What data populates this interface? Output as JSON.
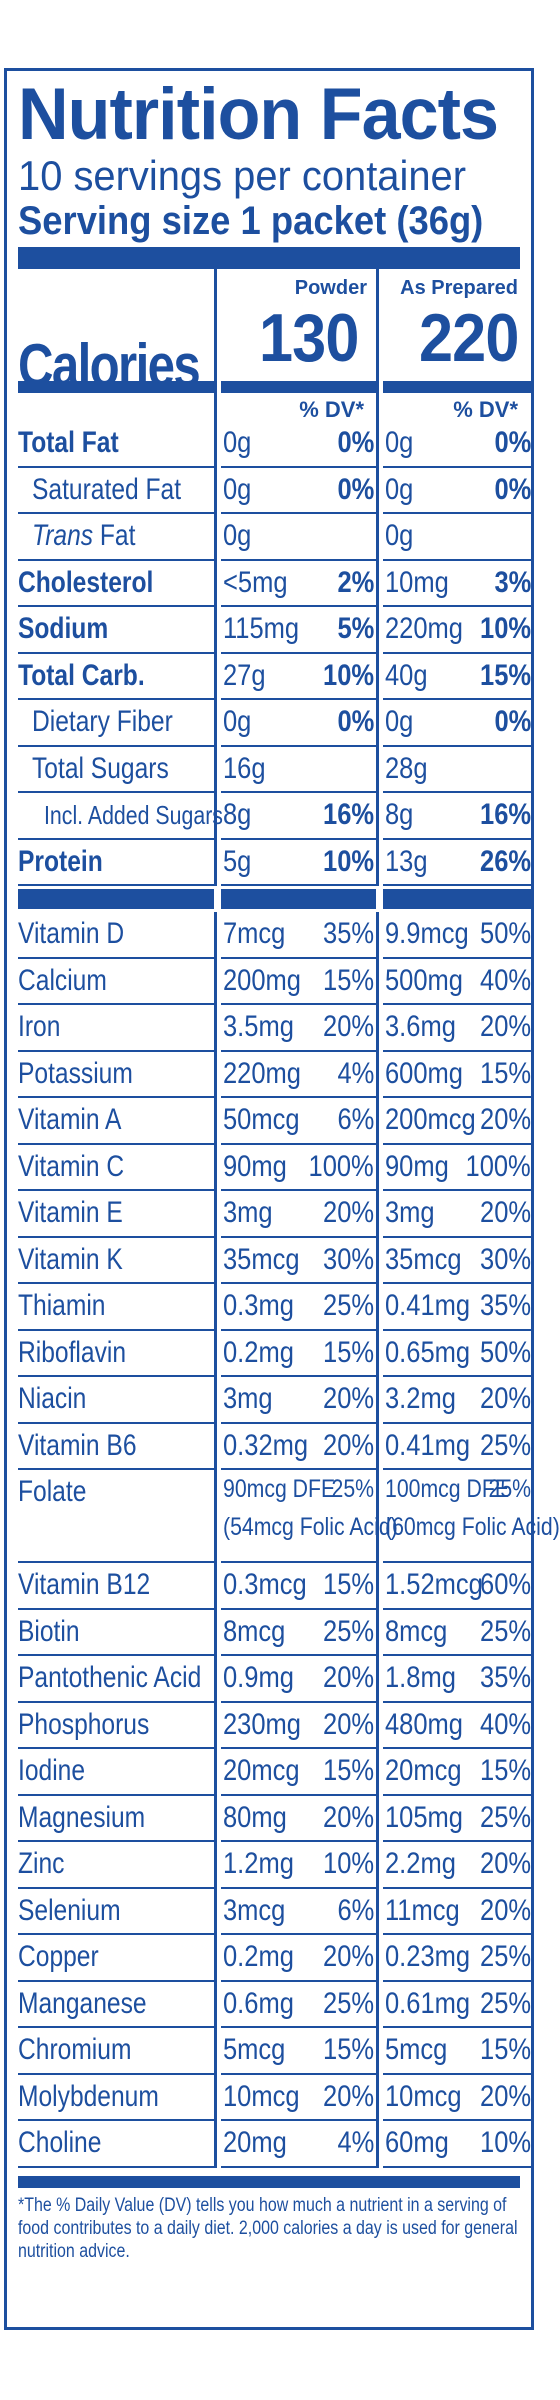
{
  "header": {
    "title": "Nutrition Facts",
    "servings": "10 servings per container",
    "serving_size": "Serving size 1 packet (36g)"
  },
  "calories": {
    "label": "Calories",
    "col1_caption": "Powder",
    "col2_caption": "As Prepared",
    "col1_value": "130",
    "col2_value": "220",
    "dv_header": "% DV*"
  },
  "macros": [
    {
      "name": "Total Fat",
      "bold": true,
      "indent": 0,
      "a1": "0g",
      "p1": "0%",
      "a2": "0g",
      "p2": "0%"
    },
    {
      "name": "Saturated Fat",
      "bold": false,
      "indent": 1,
      "a1": "0g",
      "p1": "0%",
      "a2": "0g",
      "p2": "0%"
    },
    {
      "name": "Trans Fat",
      "bold": false,
      "indent": 1,
      "italic_prefix": true,
      "a1": "0g",
      "p1": "",
      "a2": "0g",
      "p2": ""
    },
    {
      "name": "Cholesterol",
      "bold": true,
      "indent": 0,
      "a1": "<5mg",
      "p1": "2%",
      "a2": "10mg",
      "p2": "3%"
    },
    {
      "name": "Sodium",
      "bold": true,
      "indent": 0,
      "a1": "115mg",
      "p1": "5%",
      "a2": "220mg",
      "p2": "10%"
    },
    {
      "name": "Total Carb.",
      "bold": true,
      "indent": 0,
      "a1": "27g",
      "p1": "10%",
      "a2": "40g",
      "p2": "15%"
    },
    {
      "name": "Dietary Fiber",
      "bold": false,
      "indent": 1,
      "a1": "0g",
      "p1": "0%",
      "a2": "0g",
      "p2": "0%"
    },
    {
      "name": "Total Sugars",
      "bold": false,
      "indent": 1,
      "a1": "16g",
      "p1": "",
      "a2": "28g",
      "p2": ""
    },
    {
      "name": "Incl. Added Sugars",
      "bold": false,
      "indent": 2,
      "a1": "8g",
      "p1": "16%",
      "a2": "8g",
      "p2": "16%"
    },
    {
      "name": "Protein",
      "bold": true,
      "indent": 0,
      "a1": "5g",
      "p1": "10%",
      "a2": "13g",
      "p2": "26%"
    }
  ],
  "micros": [
    {
      "name": "Vitamin D",
      "a1": "7mcg",
      "p1": "35%",
      "a2": "9.9mcg",
      "p2": "50%"
    },
    {
      "name": "Calcium",
      "a1": "200mg",
      "p1": "15%",
      "a2": "500mg",
      "p2": "40%"
    },
    {
      "name": "Iron",
      "a1": "3.5mg",
      "p1": "20%",
      "a2": "3.6mg",
      "p2": "20%"
    },
    {
      "name": "Potassium",
      "a1": "220mg",
      "p1": "4%",
      "a2": "600mg",
      "p2": "15%"
    },
    {
      "name": "Vitamin A",
      "a1": "50mcg",
      "p1": "6%",
      "a2": "200mcg",
      "p2": "20%"
    },
    {
      "name": "Vitamin C",
      "a1": "90mg",
      "p1": "100%",
      "a2": "90mg",
      "p2": "100%"
    },
    {
      "name": "Vitamin E",
      "a1": "3mg",
      "p1": "20%",
      "a2": "3mg",
      "p2": "20%"
    },
    {
      "name": "Vitamin K",
      "a1": "35mcg",
      "p1": "30%",
      "a2": "35mcg",
      "p2": "30%"
    },
    {
      "name": "Thiamin",
      "a1": "0.3mg",
      "p1": "25%",
      "a2": "0.41mg",
      "p2": "35%"
    },
    {
      "name": "Riboflavin",
      "a1": "0.2mg",
      "p1": "15%",
      "a2": "0.65mg",
      "p2": "50%"
    },
    {
      "name": "Niacin",
      "a1": "3mg",
      "p1": "20%",
      "a2": "3.2mg",
      "p2": "20%"
    },
    {
      "name": "Vitamin B6",
      "a1": "0.32mg",
      "p1": "20%",
      "a2": "0.41mg",
      "p2": "25%"
    },
    {
      "name": "Folate",
      "tall": true,
      "a1": "90mcg DFE\n(54mcg Folic Acid)",
      "p1": "25%",
      "a2": "100mcg DFE\n(60mcg Folic Acid)",
      "p2": "25%"
    },
    {
      "name": "Vitamin B12",
      "a1": "0.3mcg",
      "p1": "15%",
      "a2": "1.52mcg",
      "p2": "60%"
    },
    {
      "name": "Biotin",
      "a1": "8mcg",
      "p1": "25%",
      "a2": "8mcg",
      "p2": "25%"
    },
    {
      "name": "Pantothenic Acid",
      "a1": "0.9mg",
      "p1": "20%",
      "a2": "1.8mg",
      "p2": "35%"
    },
    {
      "name": "Phosphorus",
      "a1": "230mg",
      "p1": "20%",
      "a2": "480mg",
      "p2": "40%"
    },
    {
      "name": "Iodine",
      "a1": "20mcg",
      "p1": "15%",
      "a2": "20mcg",
      "p2": "15%"
    },
    {
      "name": "Magnesium",
      "a1": "80mg",
      "p1": "20%",
      "a2": "105mg",
      "p2": "25%"
    },
    {
      "name": "Zinc",
      "a1": "1.2mg",
      "p1": "10%",
      "a2": "2.2mg",
      "p2": "20%"
    },
    {
      "name": "Selenium",
      "a1": "3mcg",
      "p1": "6%",
      "a2": "11mcg",
      "p2": "20%"
    },
    {
      "name": "Copper",
      "a1": "0.2mg",
      "p1": "20%",
      "a2": "0.23mg",
      "p2": "25%"
    },
    {
      "name": "Manganese",
      "a1": "0.6mg",
      "p1": "25%",
      "a2": "0.61mg",
      "p2": "25%"
    },
    {
      "name": "Chromium",
      "a1": "5mcg",
      "p1": "15%",
      "a2": "5mcg",
      "p2": "15%"
    },
    {
      "name": "Molybdenum",
      "a1": "10mcg",
      "p1": "20%",
      "a2": "10mcg",
      "p2": "20%"
    },
    {
      "name": "Choline",
      "a1": "20mg",
      "p1": "4%",
      "a2": "60mg",
      "p2": "10%"
    }
  ],
  "footnote": "*The % Daily Value (DV) tells you how much a nutrient in a serving of food contributes to a daily diet. 2,000 calories a day is used for general nutrition advice.",
  "colors": {
    "ink": "#1d4f9f",
    "background": "#ffffff"
  }
}
